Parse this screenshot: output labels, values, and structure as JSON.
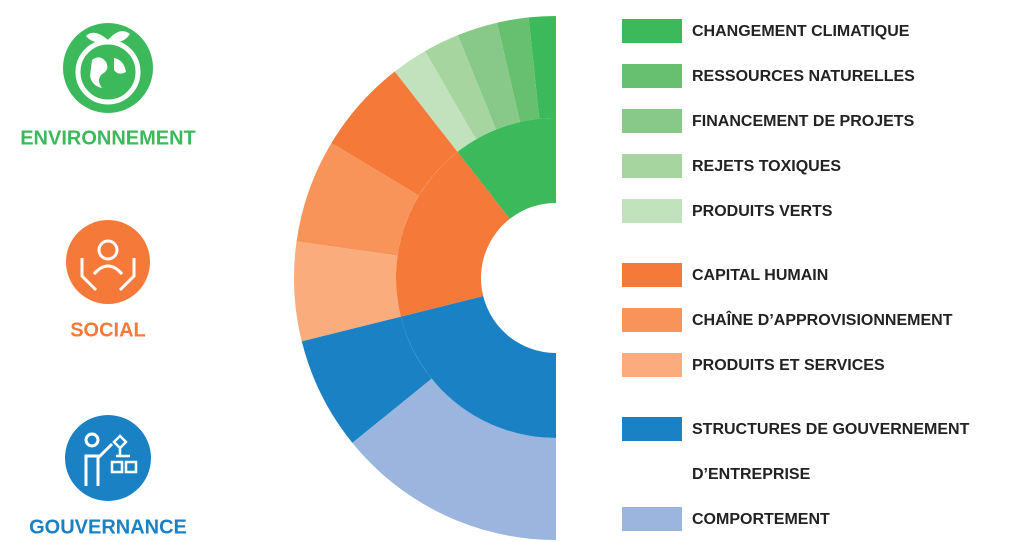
{
  "chart_data": {
    "type": "sunburst",
    "groups": [
      {
        "name": "ENVIRONNEMENT",
        "color": "#3cb95a",
        "children": [
          {
            "name": "CHANGEMENT CLIMATIQUE",
            "color": "#3cb95a",
            "value": 6
          },
          {
            "name": "RESSOURCES NATURELLES",
            "color": "#66c06f",
            "value": 7
          },
          {
            "name": "FINANCEMENT DE PROJETS",
            "color": "#88c98a",
            "value": 9
          },
          {
            "name": "REJETS TOXIQUES",
            "color": "#a6d5a0",
            "value": 8
          },
          {
            "name": "PRODUITS VERTS",
            "color": "#c2e2bd",
            "value": 8
          }
        ]
      },
      {
        "name": "SOCIAL",
        "color": "#f57a3a",
        "children": [
          {
            "name": "CAPITAL HUMAIN",
            "color": "#f57a3a",
            "value": 21
          },
          {
            "name": "CHAÎNE D’APPROVISIONNEMENT",
            "color": "#f89459",
            "value": 23
          },
          {
            "name": "PRODUITS ET SERVICES",
            "color": "#fbac7c",
            "value": 22
          }
        ]
      },
      {
        "name": "GOUVERNANCE",
        "color": "#1a82c4",
        "children": [
          {
            "name": "STRUCTURES DE GOUVERNEMENT D’ENTREPRISE",
            "color": "#1a82c4",
            "value": 25
          },
          {
            "name": "COMPORTEMENT",
            "color": "#9bb5de",
            "value": 51
          }
        ]
      }
    ]
  }
}
